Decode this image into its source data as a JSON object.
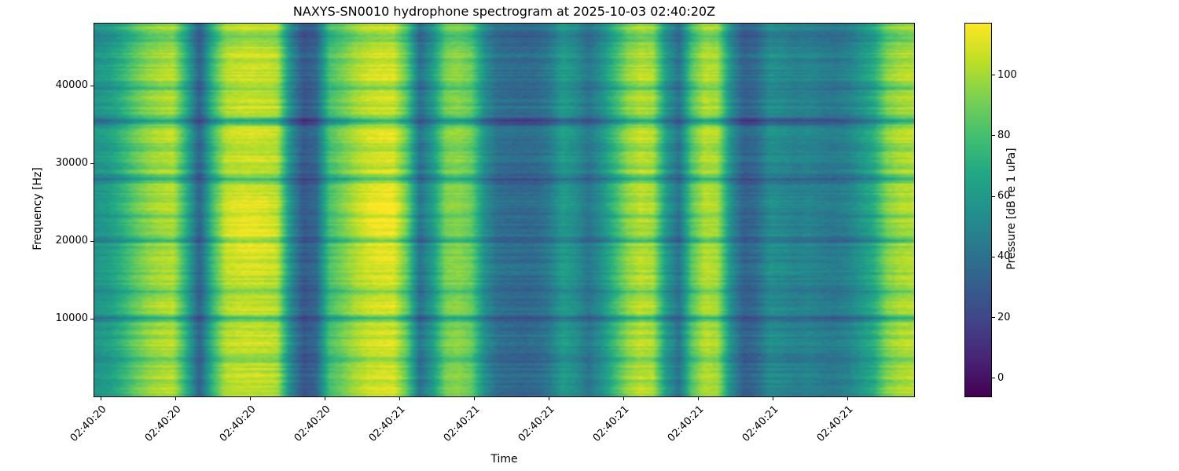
{
  "chart_data": {
    "type": "heatmap",
    "title": "NAXYS-SN0010 hydrophone spectrogram at 2025-10-03 02:40:20Z",
    "xlabel": "Time",
    "ylabel": "Frequency [Hz]",
    "x_tick_labels": [
      "02:40:20",
      "02:40:20",
      "02:40:20",
      "02:40:20",
      "02:40:21",
      "02:40:21",
      "02:40:21",
      "02:40:21",
      "02:40:21",
      "02:40:21",
      "02:40:21"
    ],
    "y_ticks": [
      10000,
      20000,
      30000,
      40000
    ],
    "freq_range_hz": [
      0,
      48000
    ],
    "grid": false,
    "colorbar": {
      "label": "Pressure [dB re 1 uPa]",
      "ticks": [
        0,
        20,
        40,
        60,
        80,
        100
      ],
      "vmin": -6,
      "vmax": 117
    },
    "colormap": {
      "name": "viridis",
      "stops": [
        [
          0.0,
          "#440154"
        ],
        [
          0.1,
          "#482475"
        ],
        [
          0.2,
          "#414487"
        ],
        [
          0.3,
          "#355f8d"
        ],
        [
          0.4,
          "#2a788e"
        ],
        [
          0.5,
          "#21918c"
        ],
        [
          0.6,
          "#22a884"
        ],
        [
          0.7,
          "#44bf70"
        ],
        [
          0.8,
          "#7ad151"
        ],
        [
          0.9,
          "#bddf26"
        ],
        [
          1.0,
          "#fde725"
        ]
      ]
    },
    "time_profile_db": [
      58,
      62,
      72,
      85,
      95,
      100,
      102,
      70,
      30,
      75,
      103,
      106,
      107,
      106,
      104,
      55,
      28,
      35,
      80,
      90,
      100,
      106,
      108,
      108,
      85,
      38,
      60,
      92,
      95,
      88,
      55,
      40,
      38,
      37,
      38,
      45,
      62,
      55,
      42,
      55,
      75,
      95,
      103,
      100,
      60,
      40,
      85,
      103,
      100,
      55,
      32,
      38,
      55,
      52,
      48,
      50,
      46,
      44,
      48,
      58,
      68,
      92,
      100,
      102
    ],
    "row_features": [
      {
        "freq_hz": 35500,
        "delta_db": -36,
        "width_hz": 350
      },
      {
        "freq_hz": 28000,
        "delta_db": -30,
        "width_hz": 300
      },
      {
        "freq_hz": 20000,
        "delta_db": -20,
        "width_hz": 260
      },
      {
        "freq_hz": 13400,
        "delta_db": -18,
        "width_hz": 260
      },
      {
        "freq_hz": 10000,
        "delta_db": -28,
        "width_hz": 300
      },
      {
        "freq_hz": 4700,
        "delta_db": -16,
        "width_hz": 280
      },
      {
        "freq_hz": 46300,
        "delta_db": -14,
        "width_hz": 600
      },
      {
        "freq_hz": 39800,
        "delta_db": -12,
        "width_hz": 250
      },
      {
        "freq_hz": 23300,
        "delta_db": -10,
        "width_hz": 250
      },
      {
        "freq_hz": 31800,
        "delta_db": -10,
        "width_hz": 250
      }
    ],
    "hot_spots": [
      {
        "t": 0.185,
        "freq_hz": 21800,
        "dt": 0.035,
        "df_hz": 2600,
        "delta_db": 9
      },
      {
        "t": 0.355,
        "freq_hz": 22500,
        "dt": 0.03,
        "df_hz": 3200,
        "delta_db": 9
      }
    ],
    "noise": {
      "row_amp_db": 7,
      "cell_amp_db": 3,
      "seed": 7
    }
  },
  "colors": {
    "background": "#ffffff",
    "text": "#000000",
    "axis": "#000000"
  }
}
